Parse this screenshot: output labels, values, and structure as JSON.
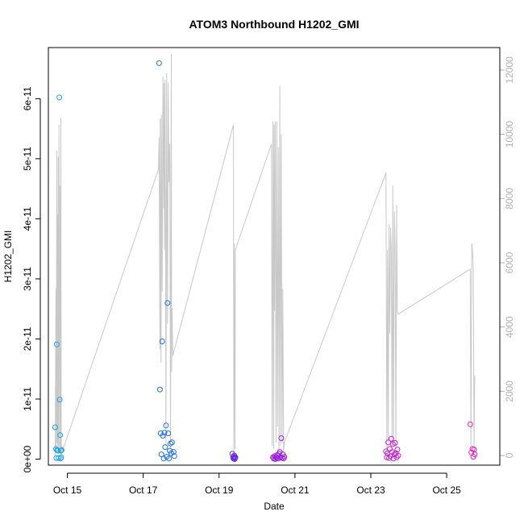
{
  "chart_data": {
    "type": "scatter",
    "title": "ATOM3 Northbound H1202_GMI",
    "xlabel": "Date",
    "ylabel": "H1202_GMI",
    "xlim": [
      14.5,
      26.4
    ],
    "ylim": [
      -1e-12,
      6.85e-11
    ],
    "y2lim": [
      -300,
      12700
    ],
    "x_ticks": [
      {
        "value": 15,
        "label": "Oct 15"
      },
      {
        "value": 17,
        "label": "Oct 17"
      },
      {
        "value": 19,
        "label": "Oct 19"
      },
      {
        "value": 21,
        "label": "Oct 21"
      },
      {
        "value": 23,
        "label": "Oct 23"
      },
      {
        "value": 25,
        "label": "Oct 25"
      }
    ],
    "y_ticks": [
      {
        "value": 0,
        "label": "0e+00"
      },
      {
        "value": 1e-11,
        "label": "1e-11"
      },
      {
        "value": 2e-11,
        "label": "2e-11"
      },
      {
        "value": 3e-11,
        "label": "3e-11"
      },
      {
        "value": 4e-11,
        "label": "4e-11"
      },
      {
        "value": 5e-11,
        "label": "5e-11"
      },
      {
        "value": 6e-11,
        "label": "6e-11"
      }
    ],
    "y2_ticks": [
      {
        "value": 0,
        "label": "0"
      },
      {
        "value": 2000,
        "label": "2000"
      },
      {
        "value": 4000,
        "label": "4000"
      },
      {
        "value": 6000,
        "label": "6000"
      },
      {
        "value": 8000,
        "label": "8000"
      },
      {
        "value": 10000,
        "label": "10000"
      },
      {
        "value": 12000,
        "label": "12000"
      }
    ],
    "series": [
      {
        "color": "#1ea0e6",
        "x": [
          14.68,
          14.7,
          14.71,
          14.72,
          14.73,
          14.75,
          14.77,
          14.79,
          14.8,
          14.81,
          14.82,
          14.83,
          14.84,
          14.85
        ],
        "y": [
          5.3e-12,
          1.7e-12,
          2e-13,
          1.91e-11,
          1.5e-12,
          1.4e-12,
          2e-13,
          6.02e-11,
          9.9e-12,
          4e-12,
          1e-13,
          1.4e-12,
          3e-13,
          1.5e-12
        ]
      },
      {
        "color": "#1e6ef0",
        "x": [
          17.42,
          17.44,
          17.46,
          17.48,
          17.5,
          17.52,
          17.54,
          17.56,
          17.58,
          17.6,
          17.62,
          17.64,
          17.66,
          17.68,
          17.7,
          17.72,
          17.74,
          17.76,
          17.8,
          17.82
        ],
        "y": [
          6.59e-11,
          1.16e-11,
          4.3e-12,
          8e-13,
          1.96e-11,
          3.9e-12,
          1e-13,
          4.4e-12,
          2e-12,
          5.6e-12,
          4e-13,
          2.6e-11,
          4.3e-12,
          1e-13,
          1.4e-12,
          2.6e-12,
          1e-12,
          2.8e-12,
          1.2e-12,
          5e-13
        ]
      },
      {
        "color": "#6a28e0",
        "x": [
          19.35,
          19.37,
          19.38,
          19.39,
          19.4,
          19.41,
          19.42,
          19.43
        ],
        "y": [
          9e-13,
          3e-13,
          1e-13,
          4e-13,
          6e-13,
          0.0,
          2e-13,
          3e-13
        ]
      },
      {
        "color": "#9a1ee0",
        "x": [
          20.42,
          20.44,
          20.46,
          20.48,
          20.5,
          20.52,
          20.54,
          20.56,
          20.58,
          20.6,
          20.62,
          20.64,
          20.66,
          20.68,
          20.7,
          20.72
        ],
        "y": [
          3e-13,
          1e-13,
          5e-13,
          0.0,
          4e-13,
          2e-13,
          7e-13,
          1e-13,
          9e-13,
          1.2e-12,
          3e-13,
          3.5e-12,
          2e-13,
          8e-13,
          1e-13,
          4e-13
        ]
      },
      {
        "color": "#c81ed6",
        "x": [
          23.4,
          23.42,
          23.44,
          23.46,
          23.48,
          23.5,
          23.52,
          23.54,
          23.56,
          23.58,
          23.6,
          23.62,
          23.64,
          23.66,
          23.68,
          23.7,
          23.72
        ],
        "y": [
          1.3e-12,
          3e-13,
          1e-12,
          2.8e-12,
          2e-13,
          1.7e-12,
          5e-13,
          3.4e-12,
          1.2e-12,
          2.5e-12,
          1e-13,
          8e-13,
          2.7e-12,
          1e-12,
          3e-13,
          1.6e-12,
          6e-13
        ]
      },
      {
        "color": "#e61ec8",
        "x": [
          25.62,
          25.65,
          25.68,
          25.7,
          25.72,
          25.74
        ],
        "y": [
          5.8e-12,
          1.1e-12,
          1.7e-12,
          4e-13,
          1.6e-12,
          8e-13
        ]
      }
    ],
    "secondary_line": {
      "color": "#c8c8c8",
      "axis": "right",
      "x": [
        14.68,
        14.7,
        14.71,
        14.72,
        14.73,
        14.74,
        14.75,
        14.76,
        14.77,
        14.78,
        14.8,
        14.81,
        14.82,
        14.83,
        14.84,
        14.85,
        14.86,
        17.4,
        17.42,
        17.44,
        17.45,
        17.46,
        17.47,
        17.48,
        17.5,
        17.52,
        17.54,
        17.55,
        17.56,
        17.58,
        17.6,
        17.62,
        17.64,
        17.66,
        17.68,
        17.7,
        17.72,
        17.74,
        17.75,
        17.76,
        17.78,
        17.8,
        19.38,
        19.39,
        19.4,
        19.42,
        19.43,
        20.38,
        20.4,
        20.42,
        20.44,
        20.45,
        20.46,
        20.48,
        20.5,
        20.52,
        20.54,
        20.56,
        20.58,
        20.6,
        20.62,
        20.64,
        20.66,
        20.68,
        20.7,
        20.72,
        23.4,
        23.42,
        23.44,
        23.46,
        23.48,
        23.5,
        23.52,
        23.54,
        23.56,
        23.58,
        23.6,
        23.62,
        23.64,
        23.66,
        23.68,
        23.7,
        23.72,
        25.62,
        25.64,
        25.66,
        25.68,
        25.7,
        25.72,
        25.74
      ],
      "y": [
        0,
        5200,
        200,
        9500,
        400,
        7500,
        300,
        9300,
        100,
        10300,
        200,
        8400,
        100,
        10500,
        0,
        300,
        100,
        8900,
        9900,
        3300,
        10500,
        4200,
        2900,
        10600,
        5100,
        11800,
        7700,
        11600,
        6400,
        11700,
        300,
        11900,
        4100,
        11600,
        8500,
        9700,
        200,
        12500,
        2600,
        4600,
        3100,
        3200,
        10300,
        0,
        6600,
        200,
        6400,
        9700,
        300,
        10400,
        200,
        10300,
        4500,
        10400,
        400,
        10400,
        900,
        9600,
        200,
        11500,
        300,
        10000,
        400,
        5200,
        100,
        400,
        8800,
        200,
        6400,
        400,
        7200,
        3800,
        7100,
        6400,
        300,
        8400,
        500,
        7600,
        6500,
        200,
        7800,
        4500,
        4400,
        5800,
        300,
        6600,
        6400,
        5800,
        300,
        2500
      ]
    }
  }
}
